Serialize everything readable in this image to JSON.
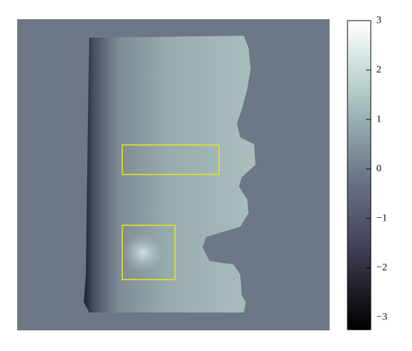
{
  "chart_data": {
    "type": "image",
    "colorbar": {
      "clim": [
        -3.25,
        3.0
      ],
      "ticks": [
        -3,
        -2,
        -1,
        0,
        1,
        2,
        3
      ],
      "tick_labels": [
        {
          "value": -3,
          "label": "−3"
        },
        {
          "value": -2,
          "label": "−2"
        },
        {
          "value": -1,
          "label": "−1"
        },
        {
          "value": 0,
          "label": "0"
        },
        {
          "value": 1,
          "label": "1"
        },
        {
          "value": 2,
          "label": "2"
        },
        {
          "value": 3,
          "label": "3"
        }
      ]
    }
  }
}
